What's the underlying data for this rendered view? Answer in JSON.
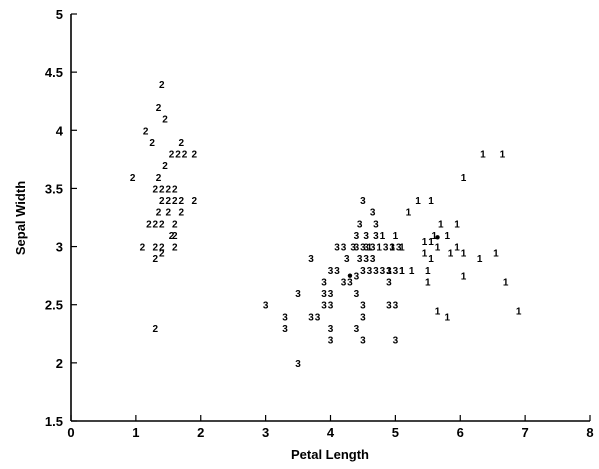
{
  "chart_data": {
    "type": "scatter",
    "title": "",
    "xlabel": "Petal Length",
    "ylabel": "Sepal Width",
    "xlim": [
      0,
      8
    ],
    "ylim": [
      1.5,
      5
    ],
    "x_ticks": [
      "0",
      "1",
      "2",
      "3",
      "4",
      "5",
      "6",
      "7",
      "8"
    ],
    "y_ticks": [
      "1.5",
      "2",
      "2.5",
      "3",
      "3.5",
      "4",
      "4.5",
      "5"
    ],
    "grid": false,
    "legend": "none",
    "marker": "text",
    "series": [
      {
        "label": "1",
        "points": [
          [
            6.35,
            3.8
          ],
          [
            6.65,
            3.8
          ],
          [
            6.05,
            3.6
          ],
          [
            5.35,
            3.4
          ],
          [
            5.55,
            3.4
          ],
          [
            5.2,
            3.3
          ],
          [
            5.7,
            3.2
          ],
          [
            5.95,
            3.2
          ],
          [
            5.6,
            3.1
          ],
          [
            5.8,
            3.1
          ],
          [
            4.8,
            3.1
          ],
          [
            5.0,
            3.1
          ],
          [
            5.45,
            3.05
          ],
          [
            5.55,
            3.05
          ],
          [
            5.65,
            3.0
          ],
          [
            4.6,
            3.0
          ],
          [
            4.75,
            3.0
          ],
          [
            4.95,
            3.0
          ],
          [
            5.1,
            3.0
          ],
          [
            5.45,
            2.95
          ],
          [
            5.85,
            2.95
          ],
          [
            6.05,
            2.95
          ],
          [
            6.55,
            2.95
          ],
          [
            5.55,
            2.9
          ],
          [
            6.3,
            2.9
          ],
          [
            5.1,
            2.8
          ],
          [
            5.5,
            2.8
          ],
          [
            6.05,
            2.75
          ],
          [
            5.5,
            2.7
          ],
          [
            6.7,
            2.7
          ],
          [
            4.9,
            2.8
          ],
          [
            5.1,
            2.8
          ],
          [
            6.9,
            2.45
          ],
          [
            5.65,
            2.45
          ],
          [
            5.8,
            2.4
          ],
          [
            5.25,
            2.8
          ],
          [
            5.95,
            3.0
          ]
        ]
      },
      {
        "label": "2",
        "points": [
          [
            1.4,
            4.4
          ],
          [
            1.35,
            4.2
          ],
          [
            1.45,
            4.1
          ],
          [
            1.15,
            4.0
          ],
          [
            1.25,
            3.9
          ],
          [
            1.7,
            3.9
          ],
          [
            1.55,
            3.8
          ],
          [
            1.65,
            3.8
          ],
          [
            1.75,
            3.8
          ],
          [
            1.9,
            3.8
          ],
          [
            1.45,
            3.7
          ],
          [
            0.95,
            3.6
          ],
          [
            1.35,
            3.6
          ],
          [
            1.3,
            3.5
          ],
          [
            1.4,
            3.5
          ],
          [
            1.5,
            3.5
          ],
          [
            1.6,
            3.5
          ],
          [
            1.4,
            3.4
          ],
          [
            1.5,
            3.4
          ],
          [
            1.6,
            3.4
          ],
          [
            1.7,
            3.4
          ],
          [
            1.9,
            3.4
          ],
          [
            1.35,
            3.3
          ],
          [
            1.7,
            3.3
          ],
          [
            1.5,
            3.3
          ],
          [
            1.2,
            3.2
          ],
          [
            1.3,
            3.2
          ],
          [
            1.4,
            3.2
          ],
          [
            1.6,
            3.2
          ],
          [
            1.55,
            3.1
          ],
          [
            1.6,
            3.1
          ],
          [
            1.1,
            3.0
          ],
          [
            1.3,
            3.0
          ],
          [
            1.4,
            3.0
          ],
          [
            1.6,
            3.0
          ],
          [
            1.4,
            2.95
          ],
          [
            1.3,
            2.9
          ],
          [
            1.3,
            2.3
          ]
        ]
      },
      {
        "label": "3",
        "points": [
          [
            4.5,
            3.4
          ],
          [
            4.65,
            3.3
          ],
          [
            4.45,
            3.2
          ],
          [
            4.7,
            3.2
          ],
          [
            4.4,
            3.1
          ],
          [
            4.55,
            3.1
          ],
          [
            4.7,
            3.1
          ],
          [
            4.4,
            3.0
          ],
          [
            4.5,
            3.0
          ],
          [
            4.1,
            3.0
          ],
          [
            4.2,
            3.0
          ],
          [
            4.35,
            3.0
          ],
          [
            4.55,
            3.0
          ],
          [
            4.65,
            3.0
          ],
          [
            4.85,
            3.0
          ],
          [
            4.95,
            3.0
          ],
          [
            5.05,
            3.0
          ],
          [
            4.25,
            2.9
          ],
          [
            4.45,
            2.9
          ],
          [
            4.55,
            2.9
          ],
          [
            4.65,
            2.9
          ],
          [
            3.7,
            2.9
          ],
          [
            4.0,
            2.8
          ],
          [
            4.1,
            2.8
          ],
          [
            4.5,
            2.8
          ],
          [
            4.6,
            2.8
          ],
          [
            4.7,
            2.8
          ],
          [
            4.8,
            2.8
          ],
          [
            4.9,
            2.8
          ],
          [
            5.0,
            2.8
          ],
          [
            4.2,
            2.7
          ],
          [
            4.3,
            2.7
          ],
          [
            3.9,
            2.7
          ],
          [
            4.4,
            2.75
          ],
          [
            4.9,
            2.7
          ],
          [
            3.5,
            2.6
          ],
          [
            3.9,
            2.6
          ],
          [
            4.0,
            2.6
          ],
          [
            4.4,
            2.6
          ],
          [
            3.0,
            2.5
          ],
          [
            3.9,
            2.5
          ],
          [
            4.0,
            2.5
          ],
          [
            4.5,
            2.5
          ],
          [
            4.9,
            2.5
          ],
          [
            5.0,
            2.5
          ],
          [
            3.3,
            2.4
          ],
          [
            3.7,
            2.4
          ],
          [
            3.8,
            2.4
          ],
          [
            4.5,
            2.4
          ],
          [
            3.3,
            2.3
          ],
          [
            4.0,
            2.3
          ],
          [
            4.4,
            2.3
          ],
          [
            4.0,
            2.2
          ],
          [
            4.5,
            2.2
          ],
          [
            5.0,
            2.2
          ],
          [
            3.5,
            2.0
          ]
        ]
      }
    ],
    "centroids": [
      [
        5.65,
        3.08
      ],
      [
        4.3,
        2.75
      ]
    ]
  }
}
